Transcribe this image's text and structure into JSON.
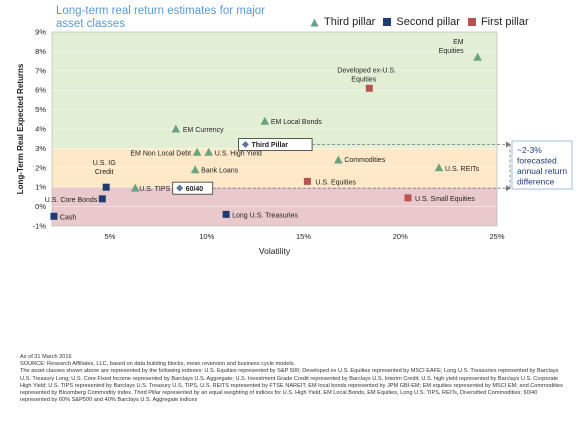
{
  "chart_data": {
    "type": "scatter",
    "title": "Long-term real return estimates for major asset classes",
    "xlabel": "Volatility",
    "ylabel": "Long-Term Real Expected Returns",
    "xlim": [
      2,
      25
    ],
    "ylim": [
      -1,
      9
    ],
    "xticks": [
      "5%",
      "10%",
      "15%",
      "20%",
      "25%"
    ],
    "xtick_values": [
      5,
      10,
      15,
      20,
      25
    ],
    "yticks": [
      "-1%",
      "0%",
      "1%",
      "2%",
      "3%",
      "4%",
      "5%",
      "6%",
      "7%",
      "8%",
      "9%"
    ],
    "ytick_values": [
      -1,
      0,
      1,
      2,
      3,
      4,
      5,
      6,
      7,
      8,
      9
    ],
    "grid": "horizontal",
    "legend": "top",
    "bands": [
      {
        "range": [
          -1,
          1
        ],
        "color": "#e9c9cb"
      },
      {
        "range": [
          1,
          3
        ],
        "color": "#fde9c8"
      },
      {
        "range": [
          3,
          9
        ],
        "color": "#e2efd5"
      }
    ],
    "series": [
      {
        "name": "Third pillar",
        "marker": "triangle",
        "color": "#6aa37f",
        "points": [
          {
            "label": "EM Equities",
            "x": 24.0,
            "y": 7.7
          },
          {
            "label": "EM Local Bonds",
            "x": 13.0,
            "y": 4.4
          },
          {
            "label": "EM Currency",
            "x": 8.4,
            "y": 4.0
          },
          {
            "label": "EM Non Local Debt",
            "x": 9.5,
            "y": 2.8
          },
          {
            "label": "U.S. High Yield",
            "x": 10.1,
            "y": 2.8
          },
          {
            "label": "Commodities",
            "x": 16.8,
            "y": 2.4
          },
          {
            "label": "U.S. REITs",
            "x": 22.0,
            "y": 2.0
          },
          {
            "label": "Bank Loans",
            "x": 9.4,
            "y": 1.9
          },
          {
            "label": "U.S. TIPS",
            "x": 6.3,
            "y": 0.95
          }
        ]
      },
      {
        "name": "Second pillar",
        "marker": "square",
        "color": "#1f3b73",
        "points": [
          {
            "label": "U.S. IG Credit",
            "x": 4.8,
            "y": 1.0
          },
          {
            "label": "U.S. Core Bonds",
            "x": 4.6,
            "y": 0.4
          },
          {
            "label": "Cash",
            "x": 2.1,
            "y": -0.5
          },
          {
            "label": "Long U.S. Treasuries",
            "x": 11.0,
            "y": -0.4
          }
        ]
      },
      {
        "name": "First pillar",
        "marker": "square",
        "color": "#b85450",
        "points": [
          {
            "label": "Developed ex-U.S. Equities",
            "x": 18.4,
            "y": 6.1
          },
          {
            "label": "U.S. Equities",
            "x": 15.2,
            "y": 1.3
          },
          {
            "label": "U.S. Small Equities",
            "x": 20.4,
            "y": 0.45
          }
        ]
      }
    ],
    "highlights": [
      {
        "label": "Third Pillar",
        "x": 12.0,
        "y": 3.2
      },
      {
        "label": "60/40",
        "x": 8.6,
        "y": 0.95
      }
    ],
    "annotation": {
      "text_lines": [
        "~2-3%",
        "forecasted",
        "annual return",
        "difference"
      ],
      "from": 1.0,
      "to": 3.2
    }
  },
  "notes": {
    "date": "As of 31 March 2016",
    "source": "SOURCE: Research Affiliates, LLC, based on data building blocks, mean reversion and business cycle models.",
    "indexes": "The asset classes shown above are represented by the following indexes: U.S. Equities represented by S&P 500; Developed ex U.S. Equities represented by MSCI EAFE; Long U.S. Treasuries represented by Barclays U.S. Treasury Long; U.S. Core Fixed Income represented by Barclays U.S. Aggregate; U.S. Investment Grade Credit represented by Barclays U.S. Interim Credit; U.S. high yield represented by Barclays U.S. Corporate High Yield; U.S. TIPS represented by Barclays U.S. Treasury U.S. TIPS, U.S. REITS represented by FTSE NAREIT; EM local bonds represented by JPM GBI-EM; EM equities represented by MSCI EM; and Commodities represented by Bloomberg Commodity Index. Third Pillar represented by an equal weighting of indices for U.S. High Yield, EM Local Bonds, EM Equities, Long U.S. TIPS, REITs, Diversified Commodities; 60/40 represented by 60% S&P500 and 40% Barclays U.S. Aggregate indices"
  }
}
